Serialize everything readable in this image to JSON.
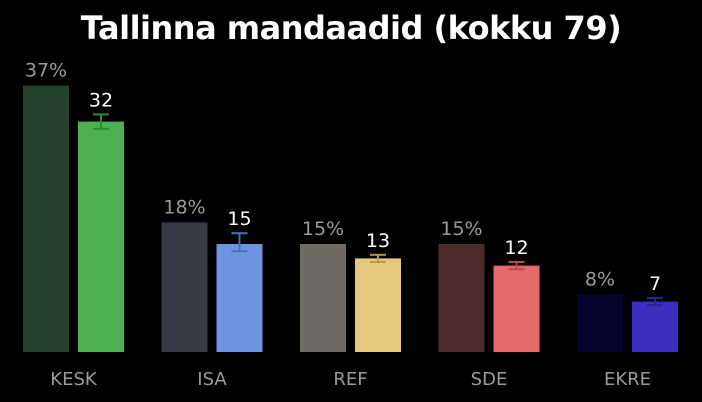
{
  "chart_data": {
    "type": "bar",
    "title": "Tallinna mandaadid (kokku 79)",
    "categories": [
      "KESK",
      "ISA",
      "REF",
      "SDE",
      "EKRE"
    ],
    "series": [
      {
        "values": [
          37,
          18,
          15,
          15,
          8
        ],
        "labels": [
          "37%",
          "18%",
          "15%",
          "15%",
          "8%"
        ],
        "colors": [
          "#24432a",
          "#363945",
          "#6f6a62",
          "#4f2b2a",
          "#050530"
        ]
      },
      {
        "values": [
          32,
          15,
          13,
          12,
          7
        ],
        "labels": [
          "32",
          "15",
          "13",
          "12",
          "7"
        ],
        "error_low": [
          31,
          14,
          12.5,
          11.5,
          6.5
        ],
        "error_high": [
          33,
          16.5,
          13.5,
          12.5,
          7.5
        ],
        "colors": [
          "#4caf50",
          "#6d94e0",
          "#e6c97c",
          "#e26b6a",
          "#3a2fc0"
        ],
        "error_colors": [
          "#2f8a35",
          "#4a6fc6",
          "#b89a4e",
          "#c2454a",
          "#2a2296"
        ]
      }
    ],
    "grid": false,
    "legend": "none"
  }
}
